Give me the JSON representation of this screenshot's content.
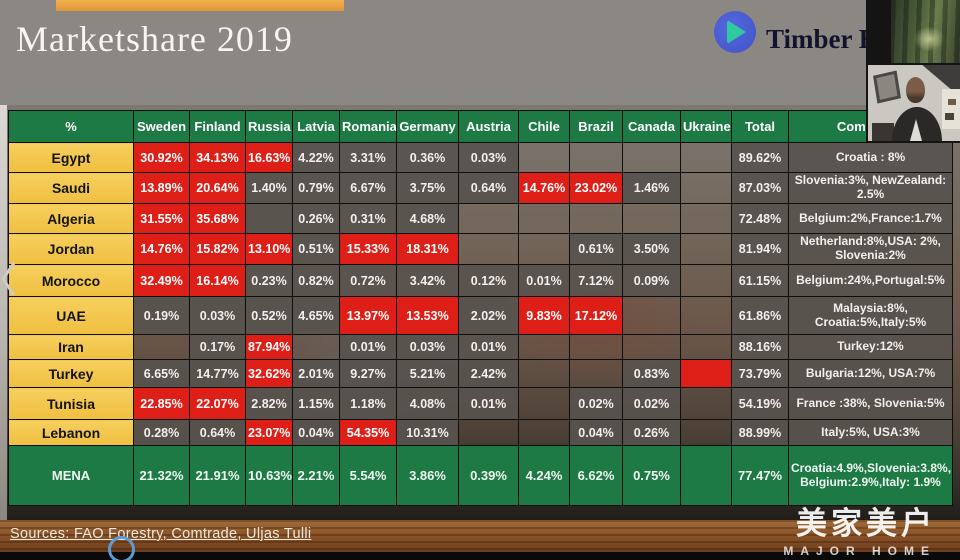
{
  "slide": {
    "title": "Marketshare 2019",
    "brand": {
      "name": "Timber Ex",
      "icon": "play-triangle-icon"
    },
    "sources": "Sources: FAO Forestry, Comtrade, Uljas Tulli",
    "watermark": {
      "chinese": "美家美户",
      "english": "MAJOR HOME"
    }
  },
  "colors": {
    "header_green": "#1e7a45",
    "row_label_yellow": "#f2c34c",
    "highlight_red": "#dd1f17",
    "value_cell_gray": "#58534e",
    "slide_gray": "#8b8884",
    "wood_bar_brown": "#8a5126"
  },
  "chart_data": {
    "type": "table",
    "title": "Marketshare 2019",
    "columns": [
      "%",
      "Sweden",
      "Finland",
      "Russia",
      "Latvia",
      "Romania",
      "Germany",
      "Austria",
      "Chile",
      "Brazil",
      "Canada",
      "Ukraine",
      "Total",
      "Comments"
    ],
    "rows": [
      {
        "name": "Egypt",
        "cells": [
          [
            "30.92%",
            "r"
          ],
          [
            "34.13%",
            "r"
          ],
          [
            "16.63%",
            "r"
          ],
          [
            "4.22%",
            "g"
          ],
          [
            "3.31%",
            "g"
          ],
          [
            "0.36%",
            "g"
          ],
          [
            "0.03%",
            "g"
          ],
          [
            "",
            ""
          ],
          [
            "",
            ""
          ],
          [
            "",
            ""
          ],
          [
            "",
            ""
          ]
        ],
        "total": "89.62%",
        "comment": "Croatia : 8%"
      },
      {
        "name": "Saudi",
        "cells": [
          [
            "13.89%",
            "r"
          ],
          [
            "20.64%",
            "r"
          ],
          [
            "1.40%",
            "g"
          ],
          [
            "0.79%",
            "g"
          ],
          [
            "6.67%",
            "g"
          ],
          [
            "3.75%",
            "g"
          ],
          [
            "0.64%",
            "g"
          ],
          [
            "14.76%",
            "r"
          ],
          [
            "23.02%",
            "r"
          ],
          [
            "1.46%",
            "g"
          ],
          [
            "",
            ""
          ]
        ],
        "total": "87.03%",
        "comment": "Slovenia:3%, NewZealand: 2.5%"
      },
      {
        "name": "Algeria",
        "cells": [
          [
            "31.55%",
            "r"
          ],
          [
            "35.68%",
            "r"
          ],
          [
            "",
            "g"
          ],
          [
            "0.26%",
            "g"
          ],
          [
            "0.31%",
            "g"
          ],
          [
            "4.68%",
            "g"
          ],
          [
            "",
            ""
          ],
          [
            "",
            ""
          ],
          [
            "",
            ""
          ],
          [
            "",
            ""
          ],
          [
            "",
            ""
          ]
        ],
        "total": "72.48%",
        "comment": "Belgium:2%,France:1.7%"
      },
      {
        "name": "Jordan",
        "cells": [
          [
            "14.76%",
            "r"
          ],
          [
            "15.82%",
            "r"
          ],
          [
            "13.10%",
            "r"
          ],
          [
            "0.51%",
            "g"
          ],
          [
            "15.33%",
            "r"
          ],
          [
            "18.31%",
            "r"
          ],
          [
            "",
            ""
          ],
          [
            "",
            ""
          ],
          [
            "0.61%",
            "g"
          ],
          [
            "3.50%",
            "g"
          ],
          [
            "",
            ""
          ]
        ],
        "total": "81.94%",
        "comment": "Netherland:8%,USA: 2%, Slovenia:2%"
      },
      {
        "name": "Morocco",
        "cells": [
          [
            "32.49%",
            "r"
          ],
          [
            "16.14%",
            "r"
          ],
          [
            "0.23%",
            "g"
          ],
          [
            "0.82%",
            "g"
          ],
          [
            "0.72%",
            "g"
          ],
          [
            "3.42%",
            "g"
          ],
          [
            "0.12%",
            "g"
          ],
          [
            "0.01%",
            "g"
          ],
          [
            "7.12%",
            "g"
          ],
          [
            "0.09%",
            "g"
          ],
          [
            "",
            ""
          ]
        ],
        "total": "61.15%",
        "comment": "Belgium:24%,Portugal:5%"
      },
      {
        "name": "UAE",
        "cells": [
          [
            "0.19%",
            "g"
          ],
          [
            "0.03%",
            "g"
          ],
          [
            "0.52%",
            "g"
          ],
          [
            "4.65%",
            "g"
          ],
          [
            "13.97%",
            "r"
          ],
          [
            "13.53%",
            "r"
          ],
          [
            "2.02%",
            "g"
          ],
          [
            "9.83%",
            "r"
          ],
          [
            "17.12%",
            "r"
          ],
          [
            "",
            ""
          ],
          [
            "",
            ""
          ]
        ],
        "total": "61.86%",
        "comment": "Malaysia:8%, Croatia:5%,Italy:5%"
      },
      {
        "name": "Iran",
        "cells": [
          [
            "",
            ""
          ],
          [
            "0.17%",
            "g"
          ],
          [
            "87.94%",
            "r"
          ],
          [
            "",
            ""
          ],
          [
            "0.01%",
            "g"
          ],
          [
            "0.03%",
            "g"
          ],
          [
            "0.01%",
            "g"
          ],
          [
            "",
            ""
          ],
          [
            "",
            ""
          ],
          [
            "",
            ""
          ],
          [
            "",
            ""
          ]
        ],
        "total": "88.16%",
        "comment": "Turkey:12%"
      },
      {
        "name": "Turkey",
        "cells": [
          [
            "6.65%",
            "g"
          ],
          [
            "14.77%",
            "g"
          ],
          [
            "32.62%",
            "r"
          ],
          [
            "2.01%",
            "g"
          ],
          [
            "9.27%",
            "g"
          ],
          [
            "5.21%",
            "g"
          ],
          [
            "2.42%",
            "g"
          ],
          [
            "",
            ""
          ],
          [
            "",
            ""
          ],
          [
            "0.83%",
            "g"
          ],
          [
            "",
            "r"
          ]
        ],
        "total": "73.79%",
        "comment": "Bulgaria:12%, USA:7%"
      },
      {
        "name": "Tunisia",
        "cells": [
          [
            "22.85%",
            "r"
          ],
          [
            "22.07%",
            "r"
          ],
          [
            "2.82%",
            "g"
          ],
          [
            "1.15%",
            "g"
          ],
          [
            "1.18%",
            "g"
          ],
          [
            "4.08%",
            "g"
          ],
          [
            "0.01%",
            "g"
          ],
          [
            "",
            ""
          ],
          [
            "0.02%",
            "g"
          ],
          [
            "0.02%",
            "g"
          ],
          [
            "",
            ""
          ]
        ],
        "total": "54.19%",
        "comment": "France :38%, Slovenia:5%"
      },
      {
        "name": "Lebanon",
        "cells": [
          [
            "0.28%",
            "g"
          ],
          [
            "0.64%",
            "g"
          ],
          [
            "23.07%",
            "r"
          ],
          [
            "0.04%",
            "g"
          ],
          [
            "54.35%",
            "r"
          ],
          [
            "10.31%",
            "g"
          ],
          [
            "",
            ""
          ],
          [
            "",
            ""
          ],
          [
            "0.04%",
            "g"
          ],
          [
            "0.26%",
            "g"
          ],
          [
            "",
            ""
          ]
        ],
        "total": "88.99%",
        "comment": "Italy:5%, USA:3%"
      },
      {
        "name": "MENA",
        "mena": true,
        "cells": [
          [
            "21.32%",
            "m"
          ],
          [
            "21.91%",
            "m"
          ],
          [
            "10.63%",
            "m"
          ],
          [
            "2.21%",
            "m"
          ],
          [
            "5.54%",
            "m"
          ],
          [
            "3.86%",
            "m"
          ],
          [
            "0.39%",
            "m"
          ],
          [
            "4.24%",
            "m"
          ],
          [
            "6.62%",
            "m"
          ],
          [
            "0.75%",
            "m"
          ],
          [
            "",
            "m"
          ]
        ],
        "total": "77.47%",
        "comment": "Croatia:4.9%,Slovenia:3.8%, Belgium:2.9%,Italy: 1.9%"
      }
    ]
  }
}
